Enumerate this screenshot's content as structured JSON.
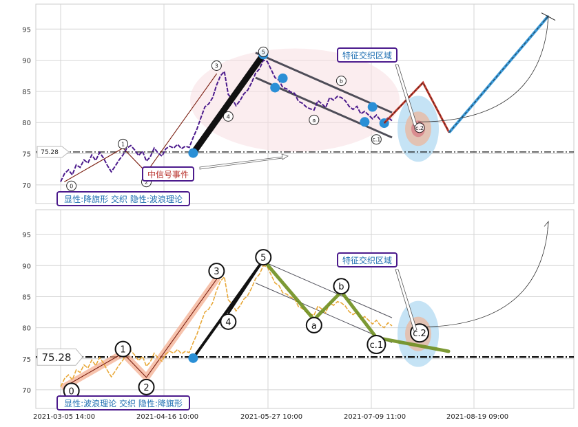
{
  "chart_data": [
    {
      "type": "line",
      "ylim": [
        67,
        99
      ],
      "y_ticks": [
        70,
        75,
        80,
        85,
        90,
        95
      ],
      "level_value": 75.28,
      "level_label": "75.28",
      "wave_labels": [
        "0",
        "1",
        "2",
        "3",
        "4",
        "5",
        "a",
        "b",
        "c.1",
        "c.2"
      ],
      "signal_text": "中信号事件",
      "region_text": "特征交织区域",
      "caption": "显性:降旗形 交织 隐性:波浪理论",
      "series": [
        {
          "values": [
            70.5,
            71.8,
            72.4,
            71.6,
            73.2,
            72.8,
            74.0,
            73.5,
            74.8,
            73.9,
            75.2,
            74.3,
            73.1,
            72.1,
            73.0,
            74.0,
            74.8,
            75.9,
            76.3,
            75.6,
            74.7,
            75.4,
            73.8,
            74.5,
            75.9,
            75.1,
            74.6,
            75.8,
            76.2,
            75.9,
            76.5,
            75.8,
            76.2,
            76.0,
            77.6,
            79.0,
            80.8,
            82.5,
            83.0,
            84.0,
            86.0,
            87.5,
            88.2,
            84.5,
            83.8,
            82.7,
            83.5,
            84.6,
            85.2,
            86.4,
            87.9,
            88.6,
            90.0,
            89.8,
            88.5,
            87.2,
            86.8,
            85.6,
            85.4,
            84.9,
            84.7,
            83.4,
            83.1,
            82.5,
            82.2,
            82.0,
            83.5,
            83.0,
            82.4,
            84.0,
            83.6,
            84.2,
            84.0,
            83.5,
            82.6,
            82.1,
            82.6,
            81.4,
            81.8,
            81.2,
            80.6,
            81.2,
            80.4,
            80.0,
            80.8,
            80.3
          ]
        }
      ]
    },
    {
      "type": "line",
      "ylim": [
        67,
        99
      ],
      "y_ticks": [
        70,
        75,
        80,
        85,
        90,
        95
      ],
      "x_tick_labels": [
        "2021-03-05 14:00",
        "2021-04-16 10:00",
        "2021-05-27 10:00",
        "2021-07-09 11:00",
        "2021-08-19 09:00"
      ],
      "level_value": 75.28,
      "level_label": "75.28",
      "wave_labels": [
        "0",
        "1",
        "2",
        "3",
        "4",
        "5",
        "a",
        "b",
        "c.1",
        "c.2"
      ],
      "region_text": "特征交织区域",
      "caption": "显性:波浪理论 交织 隐性:降旗形",
      "series": [
        {
          "values": [
            70.5,
            71.8,
            72.4,
            71.6,
            73.2,
            72.8,
            74.0,
            73.5,
            74.8,
            73.9,
            75.2,
            74.3,
            73.1,
            72.1,
            73.0,
            74.0,
            74.8,
            75.9,
            76.3,
            75.6,
            74.7,
            75.4,
            73.8,
            74.5,
            75.9,
            75.1,
            74.6,
            75.8,
            76.2,
            75.9,
            76.5,
            75.8,
            76.2,
            76.0,
            77.6,
            79.0,
            80.8,
            82.5,
            83.0,
            84.0,
            86.0,
            87.5,
            88.2,
            84.5,
            83.8,
            82.7,
            83.5,
            84.6,
            85.2,
            86.4,
            87.9,
            88.6,
            90.0,
            89.8,
            88.5,
            87.2,
            86.8,
            85.6,
            85.4,
            84.9,
            84.7,
            83.4,
            83.1,
            82.5,
            82.2,
            82.0,
            83.5,
            83.0,
            82.4,
            84.0,
            83.6,
            84.2,
            84.0,
            83.5,
            82.6,
            82.1,
            82.6,
            81.4,
            81.8,
            81.2,
            80.6,
            81.2,
            80.4,
            80.0,
            80.8,
            80.3
          ]
        }
      ]
    }
  ],
  "colors": {
    "top_price": "#4b1a8c",
    "bottom_price": "#e8a838",
    "flag_lines": "#3c3c48",
    "wave_green": "#6f8f1f",
    "blue_marker": "#2a8fd6",
    "salmon_band": "#f4a98a",
    "projection_red": "#c0392b",
    "projection_blue": "#3a9ad9",
    "caption_border": "#4b1a8c",
    "caption_text": "#1f6fb2",
    "signal_text": "#b8322c"
  }
}
